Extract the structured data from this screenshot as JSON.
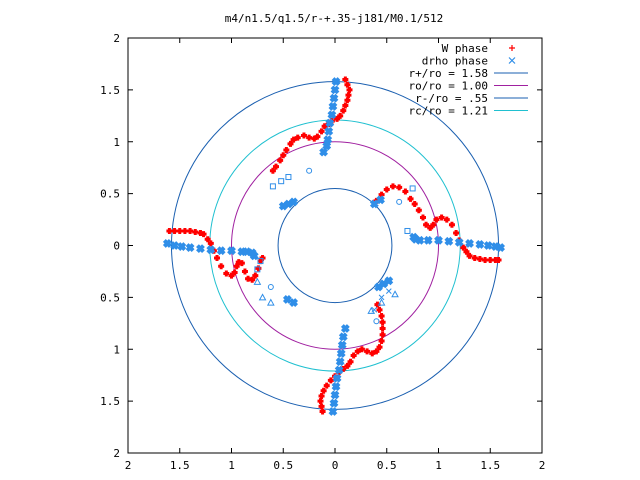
{
  "chart_data": {
    "type": "scatter",
    "title": "m4/n1.5/q1.5/r-+.35-j181/M0.1/512",
    "xlim": [
      -2,
      2
    ],
    "ylim": [
      -2,
      2
    ],
    "x_ticks": [
      {
        "v": -2,
        "label": "2"
      },
      {
        "v": -1.5,
        "label": "1.5"
      },
      {
        "v": -1,
        "label": "1"
      },
      {
        "v": -0.5,
        "label": "0.5"
      },
      {
        "v": 0,
        "label": "0"
      },
      {
        "v": 0.5,
        "label": "0.5"
      },
      {
        "v": 1,
        "label": "1"
      },
      {
        "v": 1.5,
        "label": "1.5"
      },
      {
        "v": 2,
        "label": "2"
      }
    ],
    "y_ticks": [
      {
        "v": 2,
        "label": "2"
      },
      {
        "v": 1.5,
        "label": "1.5"
      },
      {
        "v": 1,
        "label": "1"
      },
      {
        "v": 0.5,
        "label": "0.5"
      },
      {
        "v": 0,
        "label": "0"
      },
      {
        "v": -0.5,
        "label": "0.5"
      },
      {
        "v": -1,
        "label": "1"
      },
      {
        "v": -1.5,
        "label": "1.5"
      },
      {
        "v": -2,
        "label": "2"
      }
    ],
    "grid": false,
    "legend_position": "top-right",
    "circles": [
      {
        "name": "r+/ro = 1.58",
        "radius": 1.58,
        "color": "#1a5fb0"
      },
      {
        "name": "ro/ro = 1.00",
        "radius": 1.0,
        "color": "#a020a0"
      },
      {
        "name": "r-/ro = .55",
        "radius": 0.55,
        "color": "#1a5fb0"
      },
      {
        "name": "rc/ro = 1.21",
        "radius": 1.21,
        "color": "#20c0d0"
      }
    ],
    "series": [
      {
        "name": "W phase",
        "marker": "plus",
        "color": "#ff0000",
        "points": [
          [
            -1.6,
            0.14
          ],
          [
            -1.55,
            0.14
          ],
          [
            -1.5,
            0.14
          ],
          [
            -1.45,
            0.14
          ],
          [
            -1.4,
            0.14
          ],
          [
            -1.35,
            0.13
          ],
          [
            -1.3,
            0.12
          ],
          [
            -1.27,
            0.11
          ],
          [
            -1.23,
            0.06
          ],
          [
            -1.2,
            0.02
          ],
          [
            -1.17,
            -0.05
          ],
          [
            -1.14,
            -0.12
          ],
          [
            -1.1,
            -0.2
          ],
          [
            -1.05,
            -0.27
          ],
          [
            -1.0,
            -0.29
          ],
          [
            -0.97,
            -0.26
          ],
          [
            -0.95,
            -0.2
          ],
          [
            -0.93,
            -0.16
          ],
          [
            -0.9,
            -0.17
          ],
          [
            -0.87,
            -0.25
          ],
          [
            -0.84,
            -0.32
          ],
          [
            -0.8,
            -0.33
          ],
          [
            -0.77,
            -0.29
          ],
          [
            -0.74,
            -0.22
          ],
          [
            -0.72,
            -0.15
          ],
          [
            -0.7,
            -0.12
          ],
          [
            0.1,
            1.6
          ],
          [
            0.12,
            1.55
          ],
          [
            0.14,
            1.5
          ],
          [
            0.13,
            1.45
          ],
          [
            0.12,
            1.4
          ],
          [
            0.1,
            1.35
          ],
          [
            0.08,
            1.3
          ],
          [
            0.05,
            1.25
          ],
          [
            0.02,
            1.22
          ],
          [
            -0.03,
            1.2
          ],
          [
            -0.06,
            1.17
          ],
          [
            -0.1,
            1.15
          ],
          [
            -0.13,
            1.1
          ],
          [
            -0.17,
            1.05
          ],
          [
            -0.2,
            1.03
          ],
          [
            -0.25,
            1.04
          ],
          [
            -0.3,
            1.06
          ],
          [
            -0.36,
            1.04
          ],
          [
            -0.4,
            1.02
          ],
          [
            -0.43,
            0.98
          ],
          [
            -0.47,
            0.92
          ],
          [
            -0.5,
            0.87
          ],
          [
            -0.53,
            0.82
          ],
          [
            -0.57,
            0.76
          ],
          [
            -0.6,
            0.72
          ],
          [
            1.58,
            -0.14
          ],
          [
            1.55,
            -0.14
          ],
          [
            1.5,
            -0.14
          ],
          [
            1.45,
            -0.14
          ],
          [
            1.4,
            -0.13
          ],
          [
            1.35,
            -0.12
          ],
          [
            1.3,
            -0.1
          ],
          [
            1.27,
            -0.06
          ],
          [
            1.24,
            -0.02
          ],
          [
            1.2,
            0.05
          ],
          [
            1.17,
            0.12
          ],
          [
            1.13,
            0.2
          ],
          [
            1.08,
            0.25
          ],
          [
            1.03,
            0.27
          ],
          [
            0.98,
            0.25
          ],
          [
            0.95,
            0.2
          ],
          [
            0.92,
            0.17
          ],
          [
            0.88,
            0.2
          ],
          [
            0.85,
            0.27
          ],
          [
            0.81,
            0.34
          ],
          [
            0.77,
            0.4
          ],
          [
            0.73,
            0.45
          ],
          [
            0.68,
            0.52
          ],
          [
            0.62,
            0.56
          ],
          [
            0.56,
            0.57
          ],
          [
            0.5,
            0.54
          ],
          [
            0.45,
            0.49
          ],
          [
            0.4,
            0.43
          ],
          [
            -0.12,
            -1.6
          ],
          [
            -0.13,
            -1.55
          ],
          [
            -0.14,
            -1.5
          ],
          [
            -0.13,
            -1.45
          ],
          [
            -0.11,
            -1.4
          ],
          [
            -0.08,
            -1.35
          ],
          [
            -0.04,
            -1.3
          ],
          [
            0.0,
            -1.26
          ],
          [
            0.04,
            -1.22
          ],
          [
            0.08,
            -1.19
          ],
          [
            0.12,
            -1.16
          ],
          [
            0.15,
            -1.12
          ],
          [
            0.18,
            -1.06
          ],
          [
            0.22,
            -1.02
          ],
          [
            0.26,
            -1.0
          ],
          [
            0.31,
            -1.02
          ],
          [
            0.36,
            -1.04
          ],
          [
            0.4,
            -1.02
          ],
          [
            0.43,
            -0.98
          ],
          [
            0.45,
            -0.92
          ],
          [
            0.46,
            -0.86
          ],
          [
            0.46,
            -0.8
          ],
          [
            0.46,
            -0.74
          ],
          [
            0.45,
            -0.68
          ],
          [
            0.43,
            -0.62
          ],
          [
            0.41,
            -0.57
          ]
        ]
      },
      {
        "name": "drho phase",
        "marker": "cross",
        "color": "#2f8ee8",
        "points": [
          [
            -1.62,
            0.02
          ],
          [
            -1.55,
            0.0
          ],
          [
            -1.48,
            -0.01
          ],
          [
            -1.4,
            -0.02
          ],
          [
            -1.3,
            -0.03
          ],
          [
            -1.2,
            -0.04
          ],
          [
            -1.1,
            -0.05
          ],
          [
            -1.0,
            -0.05
          ],
          [
            -0.9,
            -0.06
          ],
          [
            -0.85,
            -0.06
          ],
          [
            -0.8,
            -0.07
          ],
          [
            -0.78,
            -0.1
          ],
          [
            0.01,
            1.58
          ],
          [
            0.0,
            1.5
          ],
          [
            -0.01,
            1.42
          ],
          [
            -0.02,
            1.34
          ],
          [
            -0.03,
            1.26
          ],
          [
            -0.05,
            1.18
          ],
          [
            -0.06,
            1.1
          ],
          [
            -0.07,
            1.02
          ],
          [
            -0.08,
            0.96
          ],
          [
            -0.11,
            0.9
          ],
          [
            1.6,
            -0.02
          ],
          [
            1.55,
            -0.01
          ],
          [
            1.48,
            0.0
          ],
          [
            1.4,
            0.01
          ],
          [
            1.3,
            0.02
          ],
          [
            1.2,
            0.03
          ],
          [
            1.1,
            0.04
          ],
          [
            1.0,
            0.05
          ],
          [
            0.9,
            0.05
          ],
          [
            0.82,
            0.05
          ],
          [
            0.78,
            0.06
          ],
          [
            0.76,
            0.08
          ],
          [
            -0.02,
            -1.6
          ],
          [
            -0.01,
            -1.52
          ],
          [
            0.0,
            -1.44
          ],
          [
            0.01,
            -1.36
          ],
          [
            0.02,
            -1.28
          ],
          [
            0.04,
            -1.2
          ],
          [
            0.05,
            -1.12
          ],
          [
            0.06,
            -1.04
          ],
          [
            0.07,
            -0.96
          ],
          [
            0.08,
            -0.88
          ],
          [
            0.1,
            -0.8
          ],
          [
            -0.4,
            0.42
          ],
          [
            -0.45,
            0.4
          ],
          [
            -0.5,
            0.38
          ],
          [
            0.42,
            -0.4
          ],
          [
            0.47,
            -0.37
          ],
          [
            0.52,
            -0.34
          ],
          [
            0.38,
            0.4
          ],
          [
            0.44,
            0.44
          ],
          [
            -0.4,
            -0.55
          ],
          [
            -0.46,
            -0.52
          ]
        ]
      }
    ],
    "scattered_markers": [
      {
        "shape": "square",
        "points": [
          [
            -0.6,
            0.57
          ],
          [
            -0.52,
            0.62
          ],
          [
            -0.45,
            0.66
          ],
          [
            -0.72,
            -0.15
          ],
          [
            -0.75,
            -0.23
          ],
          [
            0.7,
            0.14
          ],
          [
            0.75,
            0.55
          ]
        ]
      },
      {
        "shape": "triangle",
        "points": [
          [
            -0.75,
            -0.35
          ],
          [
            -0.7,
            -0.5
          ],
          [
            -0.62,
            -0.55
          ],
          [
            0.35,
            -0.63
          ],
          [
            0.45,
            -0.55
          ],
          [
            0.58,
            -0.47
          ]
        ]
      },
      {
        "shape": "circle",
        "points": [
          [
            -0.25,
            0.72
          ],
          [
            0.62,
            0.42
          ],
          [
            -0.62,
            -0.4
          ],
          [
            0.4,
            -0.73
          ]
        ]
      },
      {
        "shape": "x",
        "points": [
          [
            0.38,
            -0.62
          ],
          [
            0.45,
            -0.5
          ],
          [
            0.52,
            -0.44
          ]
        ]
      }
    ]
  }
}
